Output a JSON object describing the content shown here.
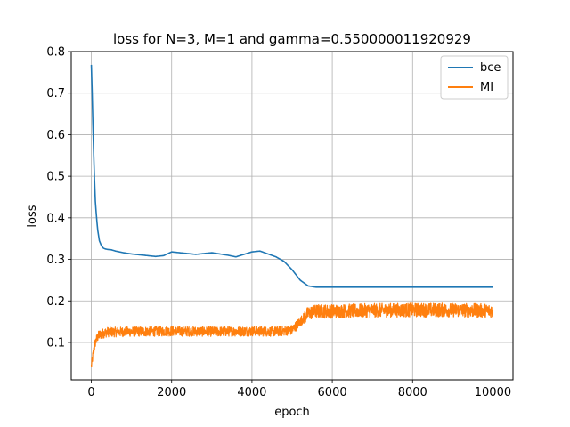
{
  "chart_data": {
    "type": "line",
    "title": "loss for N=3, M=1 and gamma=0.550000011920929",
    "xlabel": "epoch",
    "ylabel": "loss",
    "xlim": [
      -500,
      10500
    ],
    "ylim": [
      0.01,
      0.8
    ],
    "xticks": [
      0,
      2000,
      4000,
      6000,
      8000,
      10000
    ],
    "yticks": [
      0.1,
      0.2,
      0.3,
      0.4,
      0.5,
      0.6,
      0.7,
      0.8
    ],
    "xtick_labels": [
      "0",
      "2000",
      "4000",
      "6000",
      "8000",
      "10000"
    ],
    "ytick_labels": [
      "0.1",
      "0.2",
      "0.3",
      "0.4",
      "0.5",
      "0.6",
      "0.7",
      "0.8"
    ],
    "grid": true,
    "legend_position": "top-right",
    "series": [
      {
        "name": "bce",
        "color": "#1f77b4",
        "x": [
          0,
          20,
          40,
          60,
          80,
          100,
          130,
          160,
          200,
          250,
          300,
          350,
          400,
          500,
          600,
          800,
          1000,
          1200,
          1400,
          1600,
          1800,
          2000,
          2200,
          2400,
          2600,
          2800,
          3000,
          3200,
          3400,
          3600,
          3800,
          4000,
          4200,
          4400,
          4600,
          4800,
          5000,
          5200,
          5400,
          5600,
          6000,
          7000,
          8000,
          9000,
          10000
        ],
        "y": [
          0.768,
          0.7,
          0.62,
          0.55,
          0.49,
          0.44,
          0.4,
          0.37,
          0.345,
          0.333,
          0.327,
          0.325,
          0.324,
          0.323,
          0.32,
          0.316,
          0.313,
          0.311,
          0.309,
          0.307,
          0.309,
          0.318,
          0.316,
          0.314,
          0.312,
          0.314,
          0.316,
          0.313,
          0.31,
          0.306,
          0.312,
          0.318,
          0.32,
          0.313,
          0.306,
          0.295,
          0.275,
          0.25,
          0.236,
          0.233,
          0.233,
          0.233,
          0.233,
          0.233,
          0.233
        ]
      },
      {
        "name": "MI",
        "color": "#ff7f0e",
        "x": [
          0,
          50,
          100,
          150,
          200,
          300,
          400,
          600,
          1000,
          2000,
          3000,
          4000,
          4600,
          5000,
          5200,
          5400,
          5600,
          6000,
          7000,
          8000,
          9000,
          10000
        ],
        "y": [
          0.043,
          0.075,
          0.1,
          0.112,
          0.118,
          0.122,
          0.125,
          0.125,
          0.126,
          0.127,
          0.126,
          0.127,
          0.126,
          0.13,
          0.15,
          0.17,
          0.175,
          0.175,
          0.177,
          0.178,
          0.178,
          0.176
        ],
        "noise": 0.012
      }
    ]
  }
}
